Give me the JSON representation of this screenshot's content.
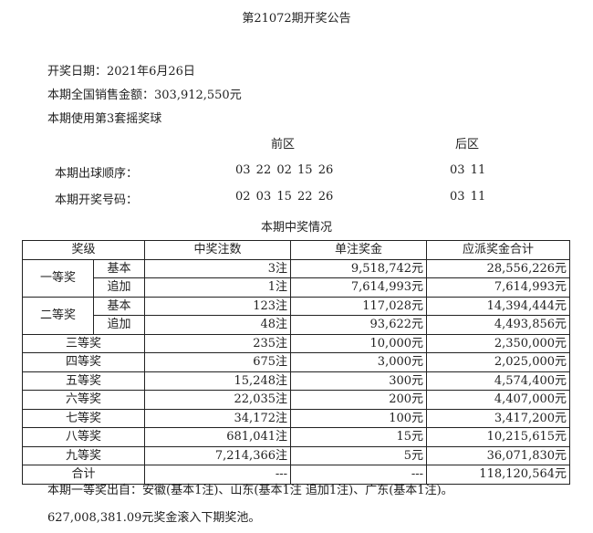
{
  "title": "第21072期开奖公告",
  "info": {
    "date": "开奖日期：2021年6月26日",
    "sales": "本期全国销售金额：303,912,550元",
    "ballset": "本期使用第3套摇奖球"
  },
  "draw": {
    "front_label": "前区",
    "back_label": "后区",
    "rows": [
      {
        "label": "本期出球顺序：",
        "front": "03 22 02 15 26",
        "back": "03 11"
      },
      {
        "label": "本期开奖号码：",
        "front": "02 03 15 22 26",
        "back": "03 11"
      }
    ]
  },
  "table": {
    "title": "本期中奖情况",
    "headers": [
      "奖级",
      "中奖注数",
      "单注奖金",
      "应派奖金合计"
    ],
    "groups": [
      {
        "level": "一等奖",
        "rows": [
          {
            "sub": "基本",
            "count": "3注",
            "prize": "9,518,742元",
            "total": "28,556,226元"
          },
          {
            "sub": "追加",
            "count": "1注",
            "prize": "7,614,993元",
            "total": "7,614,993元"
          }
        ]
      },
      {
        "level": "二等奖",
        "rows": [
          {
            "sub": "基本",
            "count": "123注",
            "prize": "117,028元",
            "total": "14,394,444元"
          },
          {
            "sub": "追加",
            "count": "48注",
            "prize": "93,622元",
            "total": "4,493,856元"
          }
        ]
      }
    ],
    "rows": [
      {
        "level": "三等奖",
        "count": "235注",
        "prize": "10,000元",
        "total": "2,350,000元"
      },
      {
        "level": "四等奖",
        "count": "675注",
        "prize": "3,000元",
        "total": "2,025,000元"
      },
      {
        "level": "五等奖",
        "count": "15,248注",
        "prize": "300元",
        "total": "4,574,400元"
      },
      {
        "level": "六等奖",
        "count": "22,035注",
        "prize": "200元",
        "total": "4,407,000元"
      },
      {
        "level": "七等奖",
        "count": "34,172注",
        "prize": "100元",
        "total": "3,417,200元"
      },
      {
        "level": "八等奖",
        "count": "681,041注",
        "prize": "15元",
        "total": "10,215,615元"
      },
      {
        "level": "九等奖",
        "count": "7,214,366注",
        "prize": "5元",
        "total": "36,071,830元"
      },
      {
        "level": "合计",
        "count": "---",
        "prize": "---",
        "total": "118,120,564元"
      }
    ]
  },
  "footer": {
    "winners": "本期一等奖出自：安徽(基本1注)、山东(基本1注 追加1注)、广东(基本1注)。",
    "rollover": "627,008,381.09元奖金滚入下期奖池。"
  }
}
